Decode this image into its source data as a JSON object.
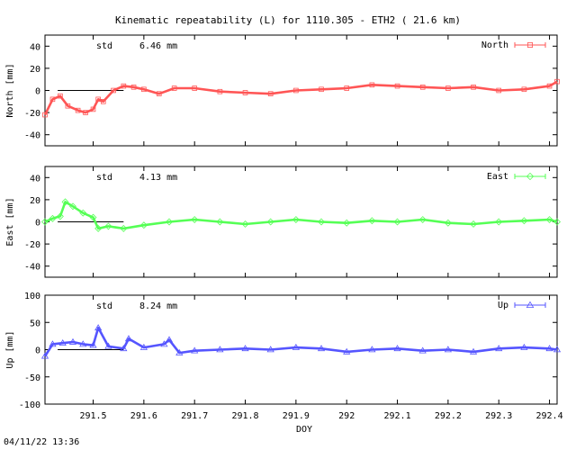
{
  "title": "Kinematic repeatability (L) for 1110.305 - ETH2  ( 21.6 km)",
  "footer_timestamp": "04/11/22 13:36",
  "chart_data": {
    "type": "line",
    "xlabel": "DOY",
    "xlim": [
      291.405,
      292.415
    ],
    "xticks": [
      291.5,
      291.6,
      291.7,
      291.8,
      291.9,
      292,
      292.1,
      292.2,
      292.3,
      292.4
    ],
    "xtick_labels": [
      "291.5",
      "291.6",
      "291.7",
      "291.8",
      "291.9",
      "292",
      "292.1",
      "292.2",
      "292.3",
      "292.4"
    ],
    "panels": [
      {
        "name": "North",
        "ylabel": "North [mm]",
        "ylim": [
          -50,
          50
        ],
        "yticks": [
          40,
          20,
          0,
          -20,
          -40
        ],
        "ytick_labels": [
          "40",
          "20",
          "0",
          "-20",
          "-40"
        ],
        "std_label": "std",
        "std_value": "6.46 mm",
        "color": "#ff5555",
        "marker": "square",
        "series": {
          "name": "North",
          "x": [
            291.405,
            291.42,
            291.435,
            291.45,
            291.47,
            291.485,
            291.5,
            291.51,
            291.52,
            291.54,
            291.56,
            291.58,
            291.6,
            291.63,
            291.66,
            291.7,
            291.75,
            291.8,
            291.85,
            291.9,
            291.95,
            292.0,
            292.05,
            292.1,
            292.15,
            292.2,
            292.25,
            292.3,
            292.35,
            292.4,
            292.415
          ],
          "y": [
            -22,
            -8,
            -5,
            -14,
            -18,
            -20,
            -17,
            -8,
            -10,
            0,
            4,
            3,
            1,
            -3,
            2,
            2,
            -1,
            -2,
            -3,
            0,
            1,
            2,
            5,
            4,
            3,
            2,
            3,
            0,
            1,
            4,
            8
          ]
        }
      },
      {
        "name": "East",
        "ylabel": "East [mm]",
        "ylim": [
          -50,
          50
        ],
        "yticks": [
          40,
          20,
          0,
          -20,
          -40
        ],
        "ytick_labels": [
          "40",
          "20",
          "0",
          "-20",
          "-40"
        ],
        "std_label": "std",
        "std_value": "4.13 mm",
        "color": "#55ff55",
        "marker": "diamond",
        "series": {
          "name": "East",
          "x": [
            291.405,
            291.42,
            291.435,
            291.445,
            291.46,
            291.48,
            291.5,
            291.51,
            291.53,
            291.56,
            291.6,
            291.65,
            291.7,
            291.75,
            291.8,
            291.85,
            291.9,
            291.95,
            292.0,
            292.05,
            292.1,
            292.15,
            292.2,
            292.25,
            292.3,
            292.35,
            292.4,
            292.415
          ],
          "y": [
            0,
            3,
            5,
            18,
            14,
            8,
            4,
            -6,
            -4,
            -6,
            -3,
            0,
            2,
            0,
            -2,
            0,
            2,
            0,
            -1,
            1,
            0,
            2,
            -1,
            -2,
            0,
            1,
            2,
            0
          ]
        }
      },
      {
        "name": "Up",
        "ylabel": "Up [mm]",
        "ylim": [
          -100,
          100
        ],
        "yticks": [
          100,
          50,
          0,
          -50,
          -100
        ],
        "ytick_labels": [
          "100",
          "50",
          "0",
          "-50",
          "-100"
        ],
        "std_label": "std",
        "std_value": "8.24 mm",
        "color": "#5555ff",
        "marker": "triangle",
        "series": {
          "name": "Up",
          "x": [
            291.405,
            291.42,
            291.44,
            291.46,
            291.48,
            291.5,
            291.51,
            291.53,
            291.56,
            291.57,
            291.6,
            291.64,
            291.65,
            291.67,
            291.7,
            291.75,
            291.8,
            291.85,
            291.9,
            291.95,
            292.0,
            292.05,
            292.1,
            292.15,
            292.2,
            292.25,
            292.3,
            292.35,
            292.4,
            292.415
          ],
          "y": [
            -12,
            10,
            12,
            14,
            10,
            8,
            40,
            6,
            2,
            20,
            4,
            10,
            18,
            -6,
            -2,
            0,
            2,
            0,
            4,
            2,
            -4,
            0,
            2,
            -2,
            0,
            -4,
            2,
            4,
            2,
            0
          ]
        }
      }
    ]
  }
}
